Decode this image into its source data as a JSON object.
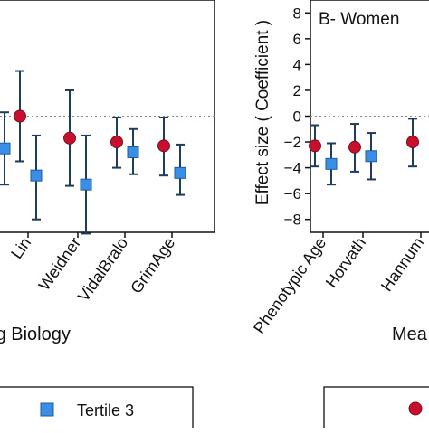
{
  "chart_data": [
    {
      "type": "scatter",
      "title": "",
      "xlabel": "ing Biology",
      "ylabel": "",
      "ylim": [
        -9,
        9
      ],
      "categories": [
        "",
        "Lin",
        "Weidner",
        "VidalBralo",
        "GrimAge"
      ],
      "series": [
        {
          "name": "",
          "marker": "circle",
          "color": "#c8102e",
          "points": [
            {
              "category": "Lin",
              "y": 0.0,
              "low": -3.5,
              "high": 3.5
            },
            {
              "category": "Weidner",
              "y": -1.7,
              "low": -5.4,
              "high": 2.0
            },
            {
              "category": "VidalBralo",
              "y": -2.0,
              "low": -4.0,
              "high": -0.1
            },
            {
              "category": "GrimAge",
              "y": -2.3,
              "low": -4.6,
              "high": -0.1
            }
          ]
        },
        {
          "name": "Tertile 3",
          "marker": "square",
          "color": "#3a8ee6",
          "points": [
            {
              "category": "",
              "y": -2.5,
              "low": -5.3,
              "high": 0.3
            },
            {
              "category": "Lin",
              "y": -4.6,
              "low": -8.0,
              "high": -1.5
            },
            {
              "category": "Weidner",
              "y": -5.3,
              "low": -9.1,
              "high": -1.5
            },
            {
              "category": "VidalBralo",
              "y": -2.8,
              "low": -4.5,
              "high": -1.0
            },
            {
              "category": "GrimAge",
              "y": -4.4,
              "low": -6.1,
              "high": -2.2
            }
          ]
        }
      ],
      "reference_line": 0,
      "legend": {
        "position": "bottom",
        "entries": [
          "Tertile 3"
        ]
      }
    },
    {
      "type": "scatter",
      "title": "B- Women",
      "xlabel": "Mea",
      "ylabel": "Effect size ( Coefficient )",
      "ylim": [
        -9,
        9
      ],
      "yticks": [
        8,
        6,
        4,
        2,
        0,
        -2,
        -4,
        -6,
        -8
      ],
      "categories": [
        "Phenotypic Age",
        "Horvath",
        "Hannum"
      ],
      "series": [
        {
          "name": "",
          "marker": "circle",
          "color": "#c8102e",
          "points": [
            {
              "category": "Phenotypic Age",
              "y": -2.3,
              "low": -3.9,
              "high": -0.7
            },
            {
              "category": "Horvath",
              "y": -2.4,
              "low": -4.3,
              "high": -0.6
            },
            {
              "category": "Hannum",
              "y": -2.0,
              "low": -3.9,
              "high": -0.2
            }
          ]
        },
        {
          "name": "",
          "marker": "square",
          "color": "#3a8ee6",
          "points": [
            {
              "category": "Phenotypic Age",
              "y": -3.7,
              "low": -5.3,
              "high": -2.1
            },
            {
              "category": "Horvath",
              "y": -3.1,
              "low": -4.9,
              "high": -1.3
            }
          ]
        }
      ],
      "reference_line": 0,
      "legend": {
        "position": "bottom",
        "entries": [
          ""
        ]
      }
    }
  ]
}
